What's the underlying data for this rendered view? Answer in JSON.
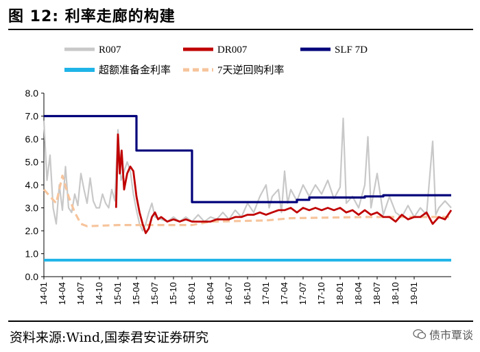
{
  "header": {
    "title": "图 12:  利率走廊的构建"
  },
  "footer": {
    "source": "资料来源:Wind,国泰君安证券研究",
    "watermark": "债市覃谈"
  },
  "chart_data": {
    "type": "line",
    "ylim": [
      0,
      8
    ],
    "yticks": [
      "0.0",
      "1.0",
      "2.0",
      "3.0",
      "4.0",
      "5.0",
      "6.0",
      "7.0",
      "8.0"
    ],
    "x_tick_labels": [
      "14-01",
      "14-04",
      "14-07",
      "14-10",
      "15-01",
      "15-04",
      "15-07",
      "15-10",
      "16-01",
      "16-04",
      "16-07",
      "16-10",
      "17-01",
      "17-04",
      "17-07",
      "17-10",
      "18-01",
      "18-04",
      "18-07",
      "18-10",
      "19-01"
    ],
    "x_range_months": [
      0,
      66
    ],
    "grid": false,
    "legend_position": "top",
    "series": [
      {
        "name": "R007",
        "color": "#c8c8c8",
        "style": "solid",
        "points": [
          [
            0,
            6.8
          ],
          [
            0.5,
            4.2
          ],
          [
            1,
            5.3
          ],
          [
            1.5,
            3.0
          ],
          [
            2,
            2.3
          ],
          [
            2.5,
            4.0
          ],
          [
            3,
            2.9
          ],
          [
            3.5,
            4.8
          ],
          [
            4,
            3.0
          ],
          [
            4.5,
            2.8
          ],
          [
            5,
            3.6
          ],
          [
            5.5,
            3.1
          ],
          [
            6,
            4.5
          ],
          [
            6.5,
            3.8
          ],
          [
            7,
            3.2
          ],
          [
            7.5,
            4.3
          ],
          [
            8,
            3.3
          ],
          [
            8.5,
            3.0
          ],
          [
            9,
            3.0
          ],
          [
            9.5,
            3.6
          ],
          [
            10,
            3.2
          ],
          [
            10.5,
            3.0
          ],
          [
            11,
            3.8
          ],
          [
            11.5,
            3.3
          ],
          [
            12,
            6.4
          ],
          [
            12.5,
            4.2
          ],
          [
            13,
            4.6
          ],
          [
            13.5,
            5.0
          ],
          [
            14,
            4.6
          ],
          [
            14.5,
            3.6
          ],
          [
            15,
            2.9
          ],
          [
            15.5,
            2.3
          ],
          [
            16,
            2.0
          ],
          [
            16.5,
            2.3
          ],
          [
            17,
            2.8
          ],
          [
            17.5,
            3.2
          ],
          [
            18,
            2.6
          ],
          [
            19,
            2.5
          ],
          [
            20,
            2.4
          ],
          [
            21,
            2.6
          ],
          [
            22,
            2.4
          ],
          [
            23,
            2.6
          ],
          [
            24,
            2.4
          ],
          [
            25,
            2.7
          ],
          [
            26,
            2.4
          ],
          [
            27,
            2.6
          ],
          [
            28,
            2.5
          ],
          [
            29,
            2.8
          ],
          [
            30,
            2.5
          ],
          [
            31,
            2.9
          ],
          [
            32,
            2.6
          ],
          [
            33,
            3.2
          ],
          [
            34,
            2.8
          ],
          [
            35,
            3.5
          ],
          [
            36,
            4.0
          ],
          [
            36.5,
            3.0
          ],
          [
            37,
            3.5
          ],
          [
            38,
            3.8
          ],
          [
            38.5,
            2.8
          ],
          [
            39,
            4.6
          ],
          [
            39.5,
            3.2
          ],
          [
            40,
            3.8
          ],
          [
            41,
            3.3
          ],
          [
            42,
            4.0
          ],
          [
            43,
            3.5
          ],
          [
            44,
            4.0
          ],
          [
            45,
            3.6
          ],
          [
            46,
            4.2
          ],
          [
            47,
            3.4
          ],
          [
            48,
            3.9
          ],
          [
            48.5,
            6.9
          ],
          [
            49,
            3.2
          ],
          [
            50,
            3.5
          ],
          [
            51,
            3.0
          ],
          [
            52,
            4.0
          ],
          [
            52.5,
            6.1
          ],
          [
            53,
            3.0
          ],
          [
            54,
            4.5
          ],
          [
            55,
            2.7
          ],
          [
            56,
            3.5
          ],
          [
            57,
            2.8
          ],
          [
            58,
            2.6
          ],
          [
            59,
            3.1
          ],
          [
            60,
            2.6
          ],
          [
            61,
            3.0
          ],
          [
            62,
            2.7
          ],
          [
            63,
            5.9
          ],
          [
            63.5,
            2.7
          ],
          [
            64,
            3.0
          ],
          [
            65,
            3.3
          ],
          [
            66,
            3.0
          ]
        ]
      },
      {
        "name": "DR007",
        "color": "#c00000",
        "style": "solid",
        "points": [
          [
            11.7,
            3.0
          ],
          [
            12,
            6.2
          ],
          [
            12.3,
            4.5
          ],
          [
            12.6,
            5.5
          ],
          [
            13,
            3.8
          ],
          [
            13.5,
            4.5
          ],
          [
            14,
            4.8
          ],
          [
            14.5,
            4.6
          ],
          [
            15,
            3.5
          ],
          [
            15.5,
            2.8
          ],
          [
            16,
            2.3
          ],
          [
            16.5,
            1.9
          ],
          [
            17,
            2.1
          ],
          [
            17.5,
            2.6
          ],
          [
            18,
            2.8
          ],
          [
            18.5,
            2.5
          ],
          [
            19,
            2.6
          ],
          [
            20,
            2.4
          ],
          [
            21,
            2.5
          ],
          [
            22,
            2.4
          ],
          [
            23,
            2.5
          ],
          [
            24,
            2.4
          ],
          [
            25,
            2.4
          ],
          [
            26,
            2.4
          ],
          [
            27,
            2.4
          ],
          [
            28,
            2.5
          ],
          [
            29,
            2.5
          ],
          [
            30,
            2.5
          ],
          [
            31,
            2.6
          ],
          [
            32,
            2.6
          ],
          [
            33,
            2.7
          ],
          [
            34,
            2.7
          ],
          [
            35,
            2.8
          ],
          [
            36,
            2.7
          ],
          [
            37,
            2.8
          ],
          [
            38,
            2.9
          ],
          [
            39,
            2.9
          ],
          [
            40,
            3.0
          ],
          [
            41,
            2.8
          ],
          [
            42,
            3.0
          ],
          [
            43,
            2.9
          ],
          [
            44,
            3.0
          ],
          [
            45,
            2.9
          ],
          [
            46,
            3.0
          ],
          [
            47,
            2.9
          ],
          [
            48,
            3.0
          ],
          [
            49,
            2.8
          ],
          [
            50,
            2.9
          ],
          [
            51,
            2.7
          ],
          [
            52,
            2.9
          ],
          [
            53,
            2.7
          ],
          [
            54,
            2.8
          ],
          [
            55,
            2.6
          ],
          [
            56,
            2.6
          ],
          [
            57,
            2.4
          ],
          [
            58,
            2.7
          ],
          [
            59,
            2.5
          ],
          [
            60,
            2.6
          ],
          [
            61,
            2.6
          ],
          [
            62,
            2.8
          ],
          [
            63,
            2.3
          ],
          [
            64,
            2.6
          ],
          [
            65,
            2.5
          ],
          [
            66,
            2.9
          ]
        ]
      },
      {
        "name": "SLF 7D",
        "color": "#00007a",
        "style": "solid",
        "points": [
          [
            0,
            7.0
          ],
          [
            15,
            7.0
          ],
          [
            15,
            5.5
          ],
          [
            24,
            5.5
          ],
          [
            24,
            3.25
          ],
          [
            41,
            3.25
          ],
          [
            41,
            3.35
          ],
          [
            43,
            3.35
          ],
          [
            43,
            3.45
          ],
          [
            52,
            3.45
          ],
          [
            52,
            3.5
          ],
          [
            55,
            3.5
          ],
          [
            55,
            3.55
          ],
          [
            66,
            3.55
          ]
        ]
      },
      {
        "name": "超额准备金利率",
        "color": "#1fb4e8",
        "style": "solid",
        "points": [
          [
            0,
            0.72
          ],
          [
            66,
            0.72
          ]
        ]
      },
      {
        "name": "7天逆回购利率",
        "color": "#f6c49c",
        "style": "dashed",
        "points": [
          [
            0,
            3.8
          ],
          [
            1,
            3.5
          ],
          [
            2,
            3.2
          ],
          [
            3,
            4.4
          ],
          [
            4,
            3.5
          ],
          [
            5,
            2.8
          ],
          [
            6,
            2.3
          ],
          [
            7,
            2.2
          ],
          [
            12,
            2.25
          ],
          [
            20,
            2.25
          ],
          [
            24,
            2.25
          ],
          [
            27,
            2.4
          ],
          [
            36,
            2.45
          ],
          [
            40,
            2.55
          ],
          [
            52,
            2.6
          ],
          [
            66,
            2.6
          ]
        ]
      }
    ]
  }
}
